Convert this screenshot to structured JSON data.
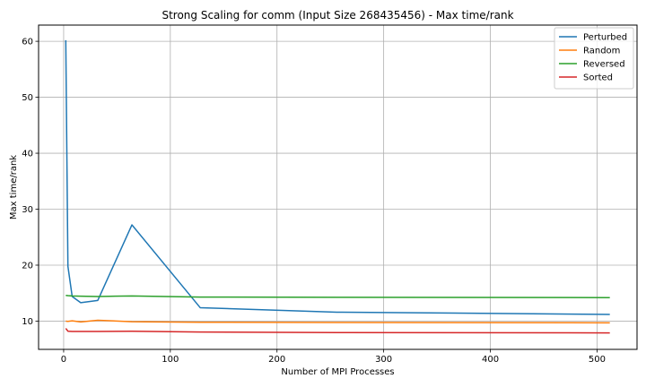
{
  "chart_data": {
    "type": "line",
    "title": "Strong Scaling for comm (Input Size 268435456) - Max time/rank",
    "xlabel": "Number of MPI Processes",
    "ylabel": "Max time/rank",
    "xlim": [
      -23.5,
      537.5
    ],
    "ylim": [
      4.95,
      62.9
    ],
    "xticks": [
      0,
      100,
      200,
      300,
      400,
      500
    ],
    "yticks": [
      10,
      20,
      30,
      40,
      50,
      60
    ],
    "grid": true,
    "legend_position": "top-right",
    "x": [
      2,
      4,
      8,
      16,
      32,
      64,
      128,
      256,
      512
    ],
    "series": [
      {
        "name": "Perturbed",
        "color": "#1f77b4",
        "values": [
          60.2,
          19.8,
          14.4,
          13.3,
          13.7,
          27.2,
          12.4,
          11.6,
          11.2
        ]
      },
      {
        "name": "Random",
        "color": "#ff7f0e",
        "values": [
          10.0,
          9.95,
          10.05,
          9.85,
          10.15,
          9.9,
          9.8,
          9.75,
          9.7
        ]
      },
      {
        "name": "Reversed",
        "color": "#2ca02c",
        "values": [
          14.6,
          14.55,
          14.5,
          14.45,
          14.4,
          14.5,
          14.3,
          14.25,
          14.2
        ]
      },
      {
        "name": "Sorted",
        "color": "#d62728",
        "values": [
          8.7,
          8.2,
          8.15,
          8.15,
          8.15,
          8.2,
          8.05,
          7.95,
          7.9
        ]
      }
    ]
  }
}
